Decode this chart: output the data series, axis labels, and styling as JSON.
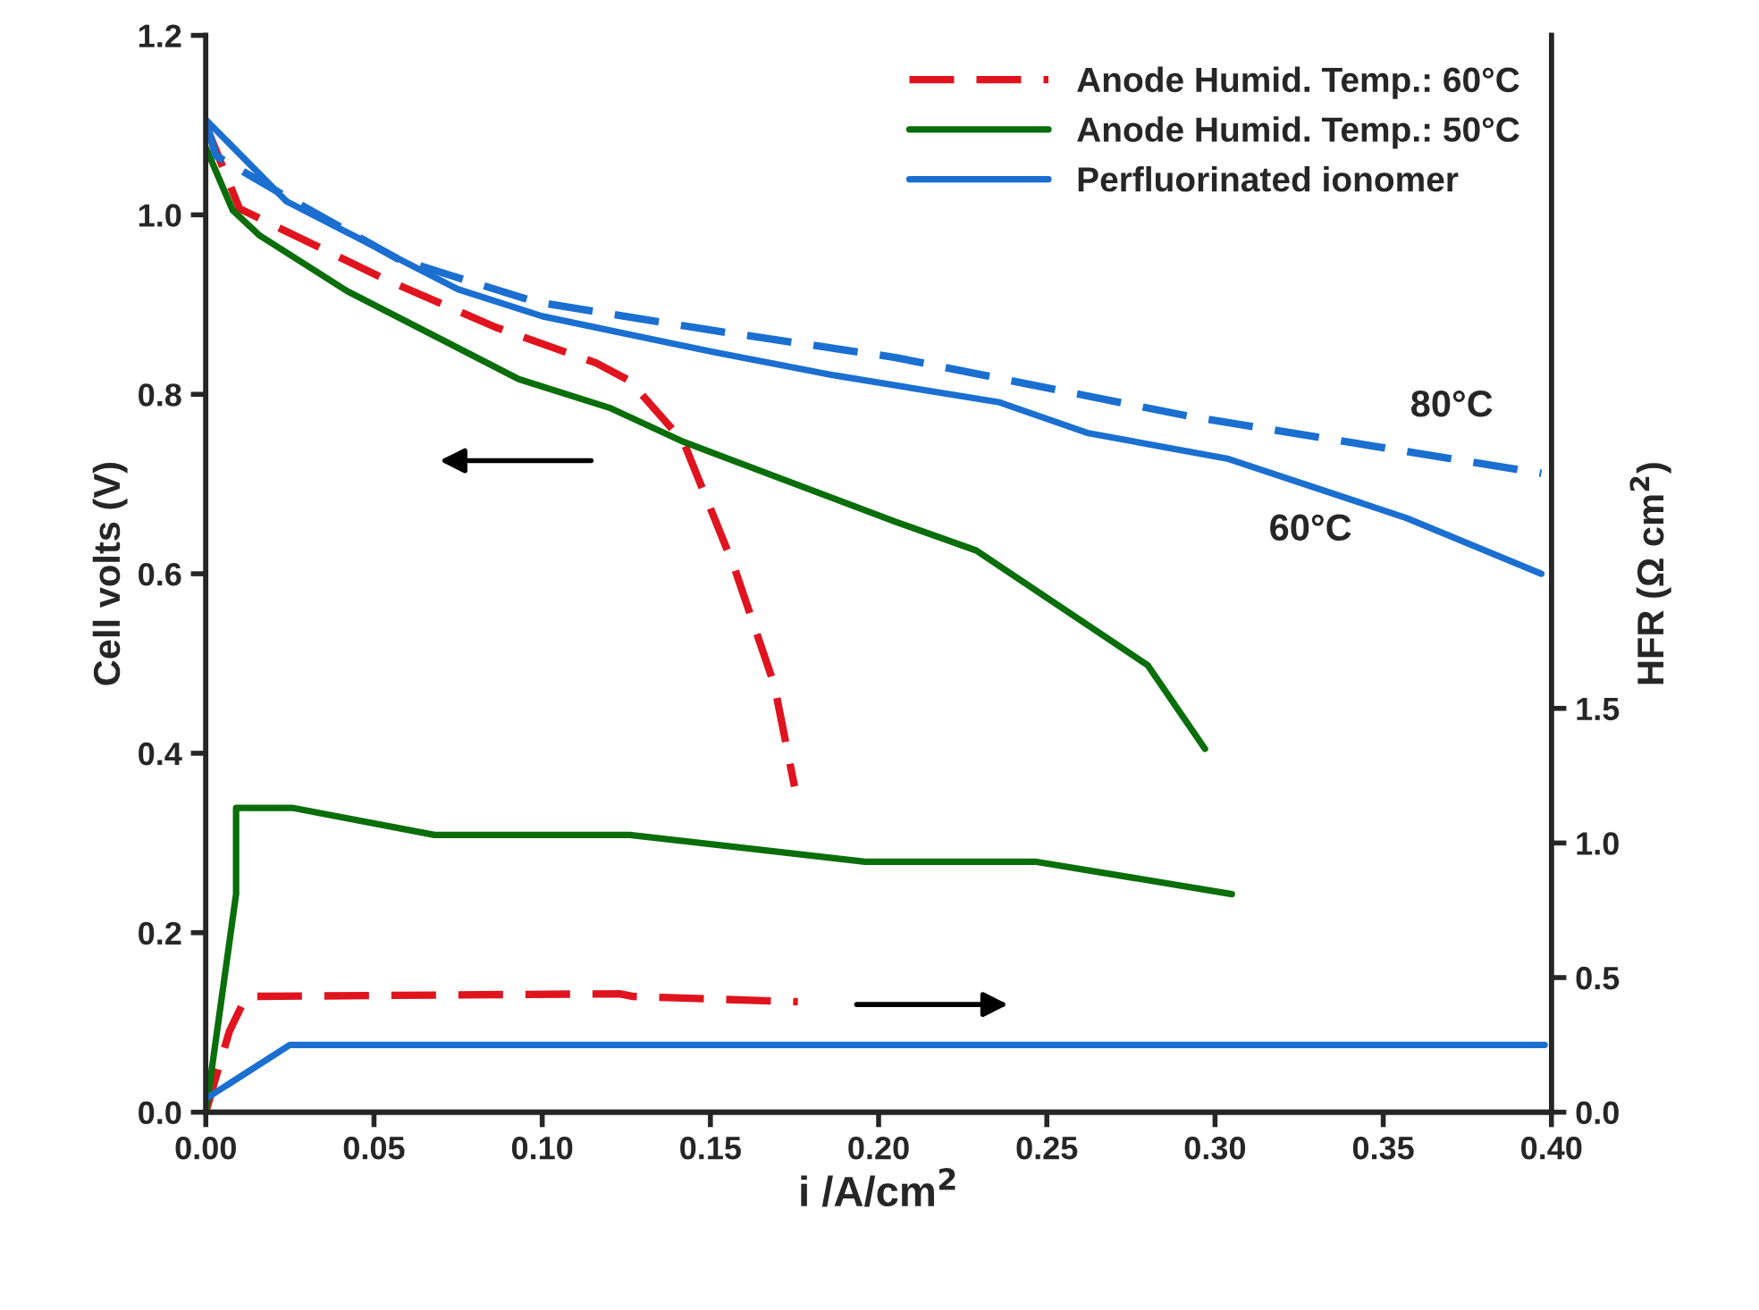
{
  "chart_data": {
    "type": "line",
    "xlabel": "i /A/cm$^{2}$",
    "ylabel": "Cell volts (V)",
    "y2label": "HFR (Ω cm$^{2}$)",
    "xlim": [
      0,
      0.4
    ],
    "xticks": [
      {
        "value": 0,
        "label": "0.00"
      },
      {
        "value": 0.05,
        "label": "0.05"
      },
      {
        "value": 0.1,
        "label": "0.10"
      },
      {
        "value": 0.15,
        "label": "0.15"
      },
      {
        "value": 0.2,
        "label": "0.20"
      },
      {
        "value": 0.25,
        "label": "0.25"
      },
      {
        "value": 0.3,
        "label": "0.30"
      },
      {
        "value": 0.35,
        "label": "0.35"
      },
      {
        "value": 0.4,
        "label": "0.40"
      }
    ],
    "ylim": [
      0,
      1.2
    ],
    "yticks": [
      {
        "value": 0,
        "label": "0.0"
      },
      {
        "value": 0.2,
        "label": "0.2"
      },
      {
        "value": 0.4,
        "label": "0.4"
      },
      {
        "value": 0.6,
        "label": "0.6"
      },
      {
        "value": 0.8,
        "label": "0.8"
      },
      {
        "value": 1.0,
        "label": "1.0"
      },
      {
        "value": 1.2,
        "label": "1.2"
      }
    ],
    "y2lim": [
      0,
      4.0
    ],
    "y2ticks": [
      {
        "value": 0,
        "label": "0.0"
      },
      {
        "value": 0.5,
        "label": "0.5"
      },
      {
        "value": 1.0,
        "label": "1.0"
      },
      {
        "value": 1.5,
        "label": "1.5"
      }
    ],
    "grid": false,
    "legend": "top right",
    "marker": "none",
    "series": [
      {
        "name": "Anode Humid. Temp.: 60°C",
        "color": "#e0141e",
        "line_style": "dashed",
        "x": [
          0,
          0.01,
          0.022,
          0.054,
          0.086,
          0.116,
          0.126,
          0.142,
          0.157,
          0.169,
          0.175
        ],
        "values": [
          1.1,
          1.007,
          0.985,
          0.927,
          0.875,
          0.835,
          0.815,
          0.747,
          0.608,
          0.476,
          0.363
        ]
      },
      {
        "name": "Anode Humid. Temp.: 50°C",
        "color": "#0a6e0a",
        "line_style": "solid",
        "x": [
          0,
          0.008,
          0.016,
          0.042,
          0.093,
          0.12,
          0.142,
          0.205,
          0.229,
          0.28,
          0.297
        ],
        "values": [
          1.075,
          1.005,
          0.977,
          0.915,
          0.817,
          0.785,
          0.747,
          0.658,
          0.626,
          0.498,
          0.405
        ]
      },
      {
        "name": "Perfluorinated ionomer",
        "color": "#1a6fd0",
        "line_style": "solid",
        "x": [
          0,
          0.024,
          0.049,
          0.075,
          0.1,
          0.151,
          0.187,
          0.236,
          0.262,
          0.304,
          0.357,
          0.397
        ],
        "values": [
          1.106,
          1.015,
          0.967,
          0.917,
          0.887,
          0.847,
          0.821,
          0.791,
          0.757,
          0.728,
          0.662,
          0.6
        ]
      },
      {
        "color": "#1a6fd0",
        "line_style": "dashed",
        "x": [
          0,
          0.003,
          0.024,
          0.057,
          0.098,
          0.151,
          0.205,
          0.293,
          0.397
        ],
        "values": [
          1.104,
          1.066,
          1.02,
          0.951,
          0.903,
          0.871,
          0.841,
          0.775,
          0.712
        ]
      },
      {
        "color": "#e0141e",
        "line_style": "dashed",
        "axis": "y2",
        "x": [
          0,
          0.003,
          0.007,
          0.012,
          0.123,
          0.127,
          0.176
        ],
        "values": [
          0,
          0.13,
          0.3,
          0.43,
          0.44,
          0.43,
          0.41
        ]
      },
      {
        "color": "#0a6e0a",
        "line_style": "solid",
        "axis": "y2",
        "x": [
          0,
          0.009,
          0.009,
          0.026,
          0.068,
          0.126,
          0.196,
          0.247,
          0.305
        ],
        "values": [
          0,
          0.81,
          1.13,
          1.13,
          1.03,
          1.03,
          0.93,
          0.93,
          0.81
        ]
      },
      {
        "color": "#1a6fd0",
        "line_style": "solid",
        "axis": "y2",
        "x": [
          0,
          0.025,
          0.398
        ],
        "values": [
          0.05,
          0.25,
          0.25
        ]
      }
    ],
    "annotations": [
      "80°C",
      "60°C"
    ]
  }
}
